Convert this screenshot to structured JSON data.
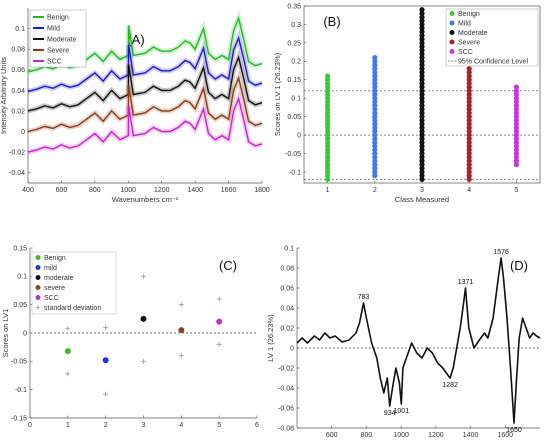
{
  "chart_data": [
    {
      "id": "A",
      "type": "line",
      "panel_label": "(A)",
      "xlabel": "Wavenumbers cm⁻¹",
      "ylabel": "Intensity Arbitrary Units",
      "xlim": [
        400,
        1800
      ],
      "ylim": [
        -0.05,
        0.12
      ],
      "xticks": [
        400,
        600,
        800,
        1000,
        1200,
        1400,
        1600,
        1800
      ],
      "yticks": [
        -0.04,
        -0.02,
        0,
        0.02,
        0.04,
        0.06,
        0.08,
        0.1
      ],
      "ytick_labels": [
        "-0.04",
        "-0.02",
        "0",
        "0.02",
        "0.04",
        "0.06",
        "0.08",
        "0.1"
      ],
      "legend_position": "top-left",
      "base_shape": {
        "x": [
          400,
          450,
          500,
          550,
          600,
          650,
          700,
          750,
          800,
          850,
          900,
          950,
          1000,
          1002,
          1030,
          1100,
          1150,
          1200,
          1250,
          1300,
          1340,
          1370,
          1400,
          1450,
          1480,
          1520,
          1560,
          1600,
          1630,
          1660,
          1690,
          1720,
          1760,
          1800
        ],
        "y": [
          0.0,
          0.002,
          0.005,
          0.003,
          0.007,
          0.004,
          0.006,
          0.012,
          0.018,
          0.01,
          0.02,
          0.012,
          0.016,
          0.045,
          0.016,
          0.018,
          0.024,
          0.02,
          0.02,
          0.024,
          0.03,
          0.028,
          0.022,
          0.042,
          0.018,
          0.012,
          0.016,
          0.012,
          0.04,
          0.052,
          0.032,
          0.01,
          0.006,
          0.008
        ]
      },
      "series": [
        {
          "name": "Benign",
          "color": "#22bb22",
          "offset": 0.058
        },
        {
          "name": "Mild",
          "color": "#1a1ad0",
          "offset": 0.039
        },
        {
          "name": "Moderate",
          "color": "#111111",
          "offset": 0.02
        },
        {
          "name": "Severe",
          "color": "#8b3a14",
          "offset": 0.0
        },
        {
          "name": "SCC",
          "color": "#cc22cc",
          "offset": -0.02
        }
      ]
    },
    {
      "id": "B",
      "type": "scatter",
      "panel_label": "(B)",
      "xlabel": "Class Measured",
      "ylabel": "Scores on LV 1 (26.23%)",
      "xlim": [
        0.5,
        5.5
      ],
      "ylim": [
        -0.13,
        0.35
      ],
      "xticks": [
        1,
        2,
        3,
        4,
        5
      ],
      "yticks": [
        -0.1,
        -0.05,
        0,
        0.05,
        0.1,
        0.15,
        0.2,
        0.25,
        0.3,
        0.35
      ],
      "ytick_labels": [
        "-0.1",
        "-0.05",
        "0",
        "0.05",
        "0.1",
        "0.15",
        "0.2",
        "0.25",
        "0.3",
        "0.35"
      ],
      "legend_position": "top-right",
      "confidence_level": {
        "label": "95% Confidence Level",
        "values": [
          0.12,
          0.0,
          -0.12
        ]
      },
      "series": [
        {
          "name": "Benign",
          "color": "#33cc33",
          "x": 1,
          "min": -0.12,
          "max": 0.16
        },
        {
          "name": "Mild",
          "color": "#4477ee",
          "x": 2,
          "min": -0.11,
          "max": 0.21
        },
        {
          "name": "Moderate",
          "color": "#111111",
          "x": 3,
          "min": -0.12,
          "max": 0.34
        },
        {
          "name": "Severe",
          "color": "#aa2222",
          "x": 4,
          "min": -0.12,
          "max": 0.18
        },
        {
          "name": "SCC",
          "color": "#cc33dd",
          "x": 5,
          "min": -0.08,
          "max": 0.13
        }
      ]
    },
    {
      "id": "C",
      "type": "scatter",
      "panel_label": "(C)",
      "xlabel": "",
      "ylabel": "Scores on LV1",
      "xlim": [
        0,
        6
      ],
      "ylim": [
        -0.15,
        0.15
      ],
      "xticks": [
        0,
        1,
        2,
        3,
        4,
        5,
        6
      ],
      "yticks": [
        -0.15,
        -0.1,
        -0.05,
        0,
        0.05,
        0.1,
        0.15
      ],
      "ytick_labels": [
        "-0.15",
        "-0.1",
        "-0.05",
        "0",
        "0.05",
        "0.1",
        "0.15"
      ],
      "legend_position": "top-left",
      "series": [
        {
          "name": "Benign",
          "color": "#44bb22",
          "x": 1,
          "y": -0.032
        },
        {
          "name": "mild",
          "color": "#2233dd",
          "x": 2,
          "y": -0.048
        },
        {
          "name": "moderate",
          "color": "#111111",
          "x": 3,
          "y": 0.025
        },
        {
          "name": "severe",
          "color": "#8b4513",
          "x": 4,
          "y": 0.005
        },
        {
          "name": "SCC",
          "color": "#bb33cc",
          "x": 5,
          "y": 0.02
        }
      ],
      "std_series_name": "standard deviation",
      "std_color": "#999999",
      "std_points": [
        {
          "x": 1,
          "y": 0.008
        },
        {
          "x": 1,
          "y": -0.072
        },
        {
          "x": 2,
          "y": 0.01
        },
        {
          "x": 2,
          "y": -0.108
        },
        {
          "x": 3,
          "y": 0.1
        },
        {
          "x": 3,
          "y": -0.05
        },
        {
          "x": 4,
          "y": 0.05
        },
        {
          "x": 4,
          "y": -0.04
        },
        {
          "x": 5,
          "y": 0.06
        },
        {
          "x": 5,
          "y": -0.02
        }
      ]
    },
    {
      "id": "D",
      "type": "line",
      "panel_label": "(D)",
      "xlabel": "",
      "ylabel": "LV 1 (26.23%)",
      "xlim": [
        400,
        1800
      ],
      "ylim": [
        -0.08,
        0.1
      ],
      "xticks": [
        600,
        800,
        1000,
        1200,
        1400,
        1600
      ],
      "yticks": [
        -0.08,
        -0.06,
        -0.04,
        -0.02,
        0,
        0.02,
        0.04,
        0.06,
        0.08,
        0.1
      ],
      "ytick_labels": [
        "-0.08",
        "-0.06",
        "-0.04",
        "-0.02",
        "0",
        "0.02",
        "0.04",
        "0.06",
        "0.08",
        "0.1"
      ],
      "series": [
        {
          "name": "LV 1",
          "color": "#111111",
          "x": [
            400,
            430,
            460,
            500,
            530,
            560,
            590,
            620,
            660,
            700,
            740,
            760,
            783,
            800,
            830,
            860,
            880,
            900,
            920,
            934,
            950,
            970,
            990,
            1001,
            1010,
            1030,
            1060,
            1090,
            1120,
            1150,
            1180,
            1210,
            1240,
            1260,
            1282,
            1300,
            1320,
            1340,
            1360,
            1371,
            1390,
            1420,
            1450,
            1480,
            1500,
            1530,
            1560,
            1576,
            1590,
            1610,
            1630,
            1650,
            1665,
            1680,
            1700,
            1720,
            1740,
            1760,
            1780,
            1800
          ],
          "y": [
            0.005,
            0.01,
            0.005,
            0.012,
            0.008,
            0.015,
            0.01,
            0.012,
            0.006,
            0.008,
            0.015,
            0.025,
            0.045,
            0.03,
            0.005,
            -0.01,
            -0.03,
            -0.045,
            -0.03,
            -0.058,
            -0.04,
            -0.02,
            -0.035,
            -0.056,
            -0.02,
            -0.01,
            0.005,
            -0.005,
            -0.01,
            0.0,
            -0.005,
            -0.015,
            -0.02,
            -0.025,
            -0.03,
            -0.02,
            0.0,
            0.02,
            0.045,
            0.06,
            0.02,
            0.0,
            0.008,
            0.015,
            0.01,
            0.03,
            0.07,
            0.09,
            0.07,
            0.03,
            -0.02,
            -0.075,
            -0.03,
            0.01,
            0.03,
            0.02,
            0.01,
            0.015,
            0.012,
            0.01
          ]
        }
      ],
      "annotations": [
        {
          "text": "783",
          "x": 783,
          "y": 0.045,
          "pos": "above"
        },
        {
          "text": "934",
          "x": 934,
          "y": -0.058,
          "pos": "below"
        },
        {
          "text": "1001",
          "x": 1001,
          "y": -0.056,
          "pos": "below"
        },
        {
          "text": "1282",
          "x": 1282,
          "y": -0.03,
          "pos": "below"
        },
        {
          "text": "1371",
          "x": 1371,
          "y": 0.06,
          "pos": "above"
        },
        {
          "text": "1576",
          "x": 1576,
          "y": 0.09,
          "pos": "above"
        },
        {
          "text": "1650",
          "x": 1650,
          "y": -0.075,
          "pos": "below"
        }
      ]
    }
  ]
}
